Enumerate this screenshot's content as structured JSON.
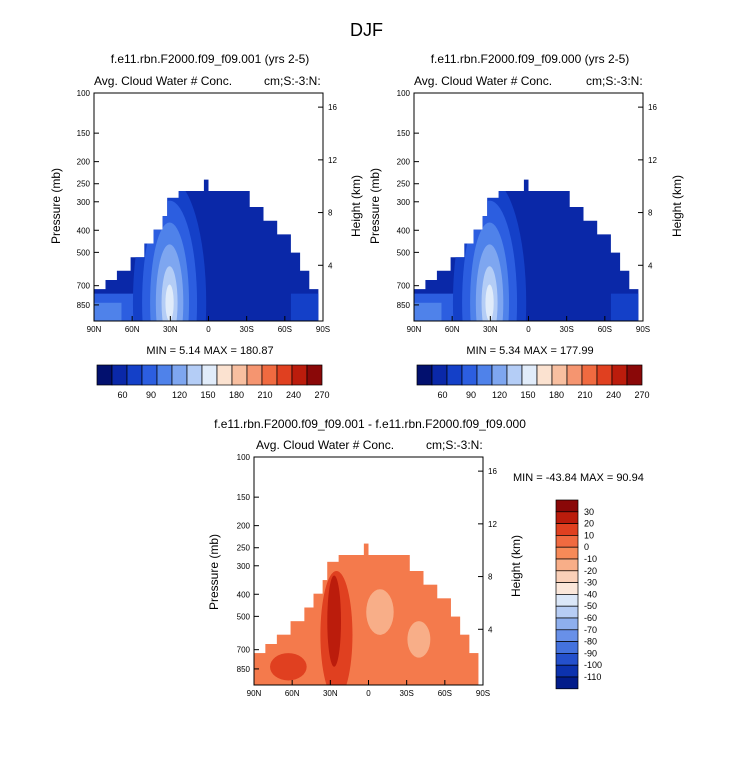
{
  "page": {
    "title": "DJF"
  },
  "panels": [
    {
      "id": "p1",
      "case": "f.e11.rbn.F2000.f09_f09.001 (yrs 2-5)",
      "left_label": "Avg. Cloud Water # Conc.",
      "right_label": "cm;S:-3:N:",
      "ylabel": "Pressure (mb)",
      "ylabel_right": "Height (km)",
      "stats": "MIN =   5.14  MAX = 180.87"
    },
    {
      "id": "p2",
      "case": "f.e11.rbn.F2000.f09_f09.000 (yrs 2-5)",
      "left_label": "Avg. Cloud Water # Conc.",
      "right_label": "cm;S:-3:N:",
      "ylabel": "Pressure (mb)",
      "ylabel_right": "Height (km)",
      "stats": "MIN =   5.34  MAX = 177.99"
    },
    {
      "id": "p3",
      "case": "f.e11.rbn.F2000.f09_f09.001 - f.e11.rbn.F2000.f09_f09.000",
      "left_label": "Avg. Cloud Water # Conc.",
      "right_label": "cm;S:-3:N:",
      "ylabel": "Pressure (mb)",
      "ylabel_right": "Height (km)",
      "stats": "MIN = -43.84  MAX =  90.94"
    }
  ],
  "chart_data": [
    {
      "type": "heatmap",
      "subtitle": "f.e11.rbn.F2000.f09_f09.001 (yrs 2-5)",
      "xlabel": "",
      "ylabel": "Pressure (mb)",
      "ylabel_right": "Height (km)",
      "x_ticks": [
        "90N",
        "60N",
        "30N",
        "0",
        "30S",
        "60S",
        "90S"
      ],
      "x_values": [
        90,
        60,
        30,
        0,
        -30,
        -60,
        -90
      ],
      "y_ticks": [
        100,
        150,
        200,
        250,
        300,
        400,
        500,
        700,
        850
      ],
      "y_right_ticks": [
        16,
        12,
        8,
        4
      ],
      "yscale": "log",
      "ylim": [
        100,
        1000
      ],
      "min": 5.14,
      "max": 180.87,
      "colorbar_labels": [
        "60",
        "90",
        "120",
        "150",
        "180",
        "210",
        "240",
        "270"
      ]
    },
    {
      "type": "heatmap",
      "subtitle": "f.e11.rbn.F2000.f09_f09.000 (yrs 2-5)",
      "xlabel": "",
      "ylabel": "Pressure (mb)",
      "ylabel_right": "Height (km)",
      "x_ticks": [
        "90N",
        "60N",
        "30N",
        "0",
        "30S",
        "60S",
        "90S"
      ],
      "x_values": [
        90,
        60,
        30,
        0,
        -30,
        -60,
        -90
      ],
      "y_ticks": [
        100,
        150,
        200,
        250,
        300,
        400,
        500,
        700,
        850
      ],
      "y_right_ticks": [
        16,
        12,
        8,
        4
      ],
      "yscale": "log",
      "ylim": [
        100,
        1000
      ],
      "min": 5.34,
      "max": 177.99,
      "colorbar_labels": [
        "60",
        "90",
        "120",
        "150",
        "180",
        "210",
        "240",
        "270"
      ]
    },
    {
      "type": "heatmap",
      "subtitle": "f.e11.rbn.F2000.f09_f09.001 - f.e11.rbn.F2000.f09_f09.000",
      "xlabel": "",
      "ylabel": "Pressure (mb)",
      "ylabel_right": "Height (km)",
      "x_ticks": [
        "90N",
        "60N",
        "30N",
        "0",
        "30S",
        "60S",
        "90S"
      ],
      "x_values": [
        90,
        60,
        30,
        0,
        -30,
        -60,
        -90
      ],
      "y_ticks": [
        100,
        150,
        200,
        250,
        300,
        400,
        500,
        700,
        850
      ],
      "y_right_ticks": [
        16,
        12,
        8,
        4
      ],
      "yscale": "log",
      "ylim": [
        100,
        1000
      ],
      "min": -43.84,
      "max": 90.94,
      "colorbar_labels": [
        "30",
        "20",
        "10",
        "0",
        "-10",
        "-20",
        "-30",
        "-40",
        "-50",
        "-60",
        "-70",
        "-80",
        "-90",
        "-100",
        "-110"
      ]
    }
  ],
  "colors": {
    "abs_scale": [
      "#02106e",
      "#0a28a8",
      "#1440c8",
      "#2c5ee0",
      "#4f82ea",
      "#7ea6f0",
      "#b4cdf6",
      "#e1ecfa",
      "#fbe2d0",
      "#f8bfa0",
      "#f59570",
      "#f06a40",
      "#e04020",
      "#bb1c0c",
      "#8a0808"
    ],
    "diff_scale": [
      "#8a0808",
      "#bb1c0c",
      "#e04020",
      "#f06a40",
      "#f78a58",
      "#f8ae88",
      "#fad0b8",
      "#fbe7da",
      "#dbe7f8",
      "#b7cdf4",
      "#8eafee",
      "#6890e8",
      "#4472de",
      "#2450cc",
      "#0c32ae",
      "#021c8a"
    ]
  }
}
